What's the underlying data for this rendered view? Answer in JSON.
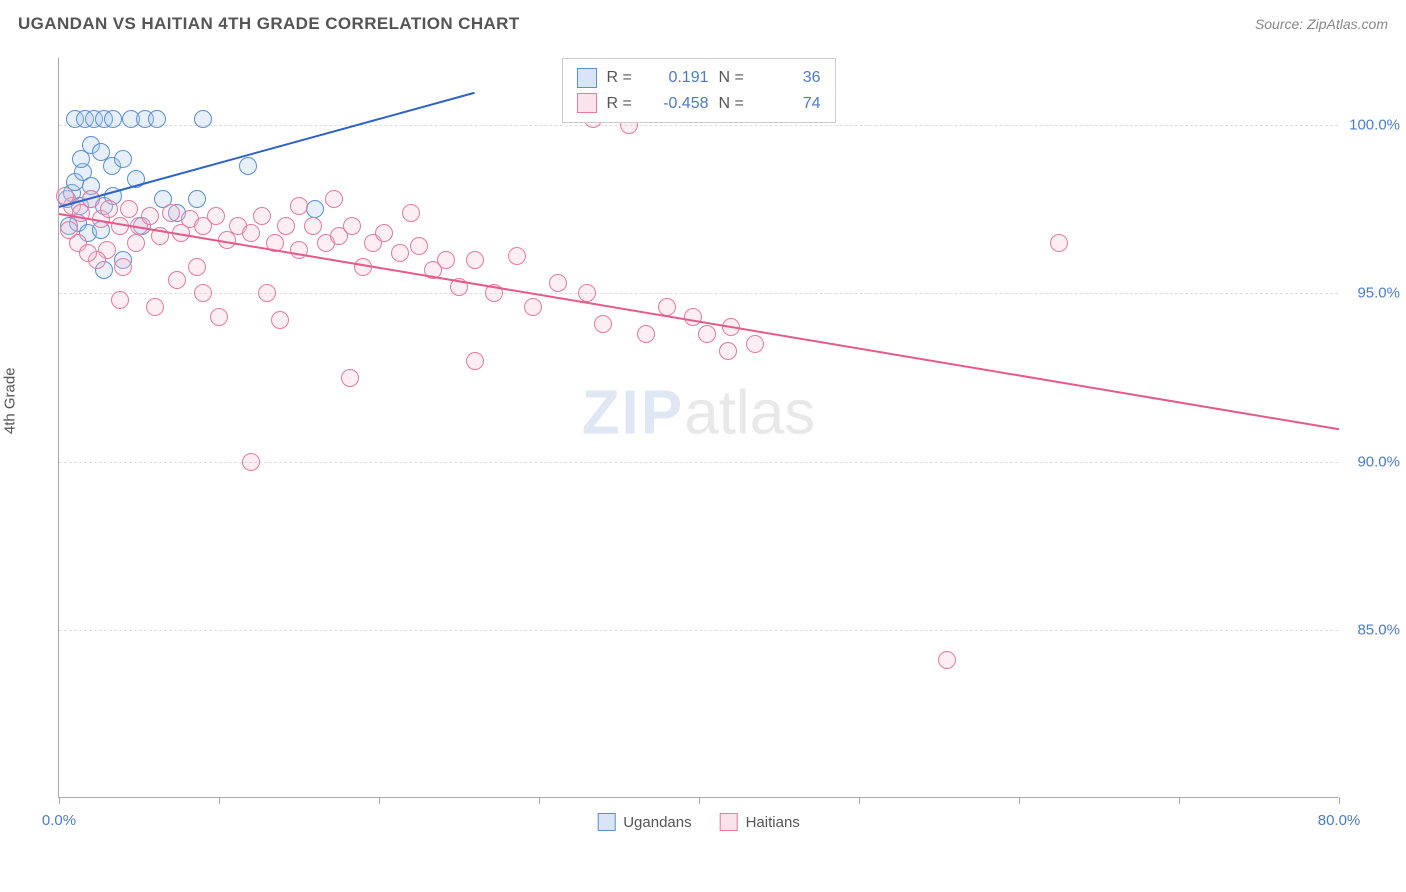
{
  "header": {
    "title": "UGANDAN VS HAITIAN 4TH GRADE CORRELATION CHART",
    "source": "Source: ZipAtlas.com"
  },
  "watermark": {
    "part1": "ZIP",
    "part2": "atlas"
  },
  "chart": {
    "type": "scatter",
    "ylabel": "4th Grade",
    "background_color": "#ffffff",
    "grid_color": "#dddddd",
    "axis_color": "#aaaaaa",
    "tick_label_color": "#4a7bd0",
    "xlim": [
      0,
      80
    ],
    "ylim": [
      80,
      102
    ],
    "ytick_step": 5,
    "yticks": [
      85,
      90,
      95,
      100
    ],
    "ytick_labels": [
      "85.0%",
      "90.0%",
      "95.0%",
      "100.0%"
    ],
    "xtick_step": 10,
    "xticks": [
      0,
      10,
      20,
      30,
      40,
      50,
      60,
      70,
      80
    ],
    "xtick_labels_shown": {
      "0": "0.0%",
      "80": "80.0%"
    },
    "marker_radius": 9,
    "marker_border_width": 1.2,
    "marker_fill_opacity": 0.28,
    "series": [
      {
        "name": "Ugandans",
        "color_fill": "#a8c6ec",
        "color_border": "#5b8fd6",
        "R": "0.191",
        "N": "36",
        "trend": {
          "x1": 0,
          "y1": 97.6,
          "x2": 26,
          "y2": 101.0,
          "color": "#2f62c9",
          "width": 2.2
        },
        "points": [
          [
            0.5,
            97.8
          ],
          [
            0.8,
            98.0
          ],
          [
            1.0,
            98.3
          ],
          [
            1.3,
            97.6
          ],
          [
            1.5,
            98.6
          ],
          [
            1.0,
            100.2
          ],
          [
            1.6,
            100.2
          ],
          [
            2.2,
            100.2
          ],
          [
            2.8,
            100.2
          ],
          [
            3.4,
            100.2
          ],
          [
            4.5,
            100.2
          ],
          [
            5.4,
            100.2
          ],
          [
            6.1,
            100.2
          ],
          [
            9.0,
            100.2
          ],
          [
            1.4,
            99.0
          ],
          [
            2.0,
            99.4
          ],
          [
            2.6,
            99.2
          ],
          [
            3.3,
            98.8
          ],
          [
            4.0,
            99.0
          ],
          [
            4.8,
            98.4
          ],
          [
            2.0,
            97.8
          ],
          [
            2.8,
            97.6
          ],
          [
            3.4,
            97.9
          ],
          [
            0.6,
            97.0
          ],
          [
            1.2,
            97.1
          ],
          [
            1.8,
            96.8
          ],
          [
            2.6,
            96.9
          ],
          [
            4.0,
            96.0
          ],
          [
            5.2,
            97.0
          ],
          [
            6.5,
            97.8
          ],
          [
            7.4,
            97.4
          ],
          [
            8.6,
            97.8
          ],
          [
            11.8,
            98.8
          ],
          [
            16.0,
            97.5
          ],
          [
            2.8,
            95.7
          ],
          [
            2.0,
            98.2
          ]
        ]
      },
      {
        "name": "Haitians",
        "color_fill": "#f3c3d2",
        "color_border": "#e77aa0",
        "R": "-0.458",
        "N": "74",
        "trend": {
          "x1": 0,
          "y1": 97.4,
          "x2": 80,
          "y2": 91.0,
          "color": "#e65a8a",
          "width": 2.0
        },
        "points": [
          [
            0.8,
            97.6
          ],
          [
            1.4,
            97.4
          ],
          [
            2.0,
            97.8
          ],
          [
            2.6,
            97.2
          ],
          [
            3.1,
            97.5
          ],
          [
            3.8,
            97.0
          ],
          [
            4.4,
            97.5
          ],
          [
            5.0,
            97.0
          ],
          [
            5.7,
            97.3
          ],
          [
            6.3,
            96.7
          ],
          [
            7.0,
            97.4
          ],
          [
            7.6,
            96.8
          ],
          [
            8.2,
            97.2
          ],
          [
            9.0,
            97.0
          ],
          [
            9.8,
            97.3
          ],
          [
            10.5,
            96.6
          ],
          [
            11.2,
            97.0
          ],
          [
            12.0,
            96.8
          ],
          [
            12.7,
            97.3
          ],
          [
            13.5,
            96.5
          ],
          [
            14.2,
            97.0
          ],
          [
            15.0,
            96.3
          ],
          [
            15.9,
            97.0
          ],
          [
            16.7,
            96.5
          ],
          [
            17.5,
            96.7
          ],
          [
            18.3,
            97.0
          ],
          [
            19.0,
            95.8
          ],
          [
            19.6,
            96.5
          ],
          [
            20.3,
            96.8
          ],
          [
            21.3,
            96.2
          ],
          [
            22.5,
            96.4
          ],
          [
            23.4,
            95.7
          ],
          [
            24.2,
            96.0
          ],
          [
            25.0,
            95.2
          ],
          [
            26.0,
            96.0
          ],
          [
            27.2,
            95.0
          ],
          [
            28.6,
            96.1
          ],
          [
            29.6,
            94.6
          ],
          [
            31.2,
            95.3
          ],
          [
            33.0,
            95.0
          ],
          [
            33.4,
            100.2
          ],
          [
            34.0,
            94.1
          ],
          [
            35.6,
            100.0
          ],
          [
            36.7,
            93.8
          ],
          [
            38.0,
            94.6
          ],
          [
            39.6,
            94.3
          ],
          [
            40.5,
            93.8
          ],
          [
            41.8,
            93.3
          ],
          [
            42.0,
            94.0
          ],
          [
            43.5,
            93.5
          ],
          [
            55.5,
            84.1
          ],
          [
            62.5,
            96.5
          ],
          [
            26.0,
            93.0
          ],
          [
            18.2,
            92.5
          ],
          [
            12.0,
            90.0
          ],
          [
            9.0,
            95.0
          ],
          [
            10.0,
            94.3
          ],
          [
            13.0,
            95.0
          ],
          [
            13.8,
            94.2
          ],
          [
            6.0,
            94.6
          ],
          [
            3.0,
            96.3
          ],
          [
            4.0,
            95.8
          ],
          [
            7.4,
            95.4
          ],
          [
            8.6,
            95.8
          ],
          [
            4.8,
            96.5
          ],
          [
            2.4,
            96.0
          ],
          [
            1.2,
            96.5
          ],
          [
            0.6,
            96.9
          ],
          [
            1.8,
            96.2
          ],
          [
            3.8,
            94.8
          ],
          [
            15.0,
            97.6
          ],
          [
            17.2,
            97.8
          ],
          [
            22.0,
            97.4
          ],
          [
            0.4,
            97.9
          ]
        ]
      }
    ],
    "legend_top": {
      "R_label": "R =",
      "N_label": "N ="
    },
    "legend_bottom": {
      "items": [
        "Ugandans",
        "Haitians"
      ]
    }
  }
}
